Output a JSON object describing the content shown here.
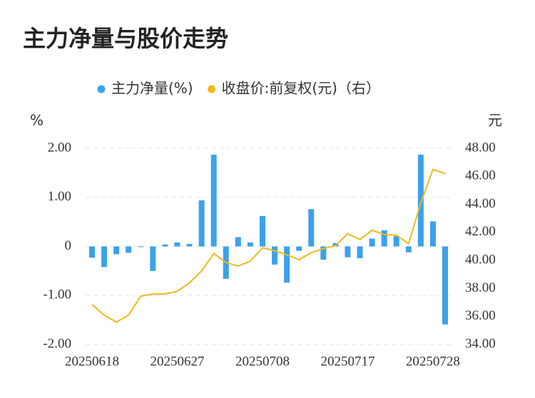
{
  "chart_data": {
    "type": "combo",
    "title": "主力净量与股价走势",
    "y_label": "%",
    "y2_label": "元",
    "categories": [
      "20250618",
      null,
      null,
      null,
      null,
      null,
      null,
      "20250627",
      null,
      null,
      null,
      null,
      null,
      null,
      "20250708",
      null,
      null,
      null,
      null,
      null,
      null,
      "20250717",
      null,
      null,
      null,
      null,
      null,
      null,
      "20250728",
      null
    ],
    "ylim": [
      -2,
      2
    ],
    "yticks": [
      {
        "value": 2,
        "label": "2.00"
      },
      {
        "value": 1,
        "label": "1.00"
      },
      0,
      {
        "value": -1,
        "label": "-1.00"
      },
      {
        "value": -2,
        "label": "-2.00"
      }
    ],
    "y2lim": [
      34,
      48
    ],
    "y2ticks": [
      {
        "value": 48,
        "label": "48.00"
      },
      {
        "value": 46,
        "label": "46.00"
      },
      {
        "value": 44,
        "label": "44.00"
      },
      {
        "value": 42,
        "label": "42.00"
      },
      {
        "value": 40,
        "label": "40.00"
      },
      {
        "value": 38,
        "label": "38.00"
      },
      {
        "value": 36,
        "label": "36.00"
      },
      {
        "value": 34,
        "label": "34.00"
      }
    ],
    "grid": true,
    "series": [
      {
        "name": "主力净量(%)",
        "type": "bar",
        "color": "#3ca1ea",
        "values": [
          -0.23,
          -0.42,
          -0.16,
          -0.13,
          -0.01,
          -0.5,
          0.04,
          0.08,
          0.05,
          0.94,
          1.87,
          -0.66,
          0.19,
          0.08,
          0.62,
          -0.37,
          -0.74,
          -0.09,
          0.76,
          -0.27,
          0.07,
          -0.22,
          -0.24,
          0.16,
          0.33,
          0.21,
          -0.12,
          1.87,
          0.51,
          -1.59
        ]
      },
      {
        "name": "收盘价:前复权(元)（右）",
        "type": "line",
        "axis": "y2",
        "color": "#f2b81c",
        "values": [
          36.85,
          36.1,
          35.6,
          36.1,
          37.45,
          37.6,
          37.6,
          37.8,
          38.4,
          39.25,
          40.5,
          39.85,
          39.6,
          39.95,
          40.9,
          40.7,
          40.4,
          40.05,
          40.55,
          40.85,
          41.05,
          41.9,
          41.5,
          42.15,
          41.85,
          41.8,
          41.2,
          44.1,
          46.5,
          46.2
        ]
      }
    ]
  }
}
